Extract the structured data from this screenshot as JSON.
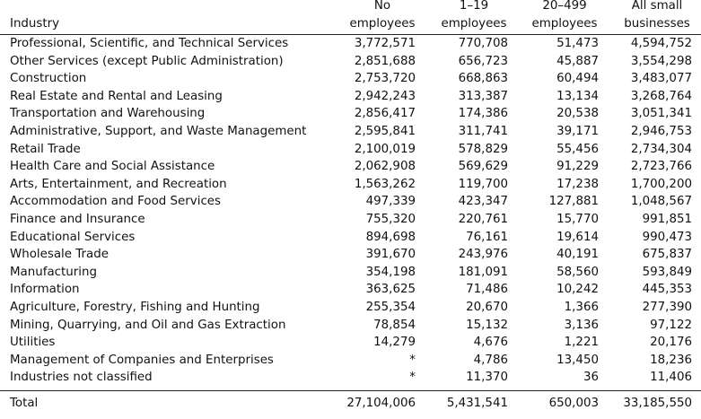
{
  "header": {
    "industry": "Industry",
    "no_employees": [
      "No",
      "employees"
    ],
    "emp_1_19": [
      "1–19",
      "employees"
    ],
    "emp_20_499": [
      "20–499",
      "employees"
    ],
    "all_small": [
      "All small",
      "businesses"
    ]
  },
  "rows": [
    {
      "industry": "Professional, Scientific, and Technical Services",
      "no": "3,772,571",
      "e1": "770,708",
      "e2": "51,473",
      "all": "4,594,752"
    },
    {
      "industry": "Other Services (except Public Administration)",
      "no": "2,851,688",
      "e1": "656,723",
      "e2": "45,887",
      "all": "3,554,298"
    },
    {
      "industry": "Construction",
      "no": "2,753,720",
      "e1": "668,863",
      "e2": "60,494",
      "all": "3,483,077"
    },
    {
      "industry": "Real Estate and Rental and Leasing",
      "no": "2,942,243",
      "e1": "313,387",
      "e2": "13,134",
      "all": "3,268,764"
    },
    {
      "industry": "Transportation and Warehousing",
      "no": "2,856,417",
      "e1": "174,386",
      "e2": "20,538",
      "all": "3,051,341"
    },
    {
      "industry": "Administrative, Support, and Waste Management",
      "no": "2,595,841",
      "e1": "311,741",
      "e2": "39,171",
      "all": "2,946,753"
    },
    {
      "industry": "Retail Trade",
      "no": "2,100,019",
      "e1": "578,829",
      "e2": "55,456",
      "all": "2,734,304"
    },
    {
      "industry": "Health Care and Social Assistance",
      "no": "2,062,908",
      "e1": "569,629",
      "e2": "91,229",
      "all": "2,723,766"
    },
    {
      "industry": "Arts, Entertainment, and Recreation",
      "no": "1,563,262",
      "e1": "119,700",
      "e2": "17,238",
      "all": "1,700,200"
    },
    {
      "industry": "Accommodation and Food Services",
      "no": "497,339",
      "e1": "423,347",
      "e2": "127,881",
      "all": "1,048,567"
    },
    {
      "industry": "Finance and Insurance",
      "no": "755,320",
      "e1": "220,761",
      "e2": "15,770",
      "all": "991,851"
    },
    {
      "industry": "Educational Services",
      "no": "894,698",
      "e1": "76,161",
      "e2": "19,614",
      "all": "990,473"
    },
    {
      "industry": "Wholesale Trade",
      "no": "391,670",
      "e1": "243,976",
      "e2": "40,191",
      "all": "675,837"
    },
    {
      "industry": "Manufacturing",
      "no": "354,198",
      "e1": "181,091",
      "e2": "58,560",
      "all": "593,849"
    },
    {
      "industry": "Information",
      "no": "363,625",
      "e1": "71,486",
      "e2": "10,242",
      "all": "445,353"
    },
    {
      "industry": "Agriculture, Forestry, Fishing and Hunting",
      "no": "255,354",
      "e1": "20,670",
      "e2": "1,366",
      "all": "277,390"
    },
    {
      "industry": "Mining, Quarrying, and Oil and Gas Extraction",
      "no": "78,854",
      "e1": "15,132",
      "e2": "3,136",
      "all": "97,122"
    },
    {
      "industry": "Utilities",
      "no": "14,279",
      "e1": "4,676",
      "e2": "1,221",
      "all": "20,176"
    },
    {
      "industry": "Management of Companies and Enterprises",
      "no": "*",
      "e1": "4,786",
      "e2": "13,450",
      "all": "18,236"
    },
    {
      "industry": "Industries not classified",
      "no": "*",
      "e1": "11,370",
      "e2": "36",
      "all": "11,406"
    }
  ],
  "total": {
    "industry": "Total",
    "no": "27,104,006",
    "e1": "5,431,541",
    "e2": "650,003",
    "all": "33,185,550"
  }
}
